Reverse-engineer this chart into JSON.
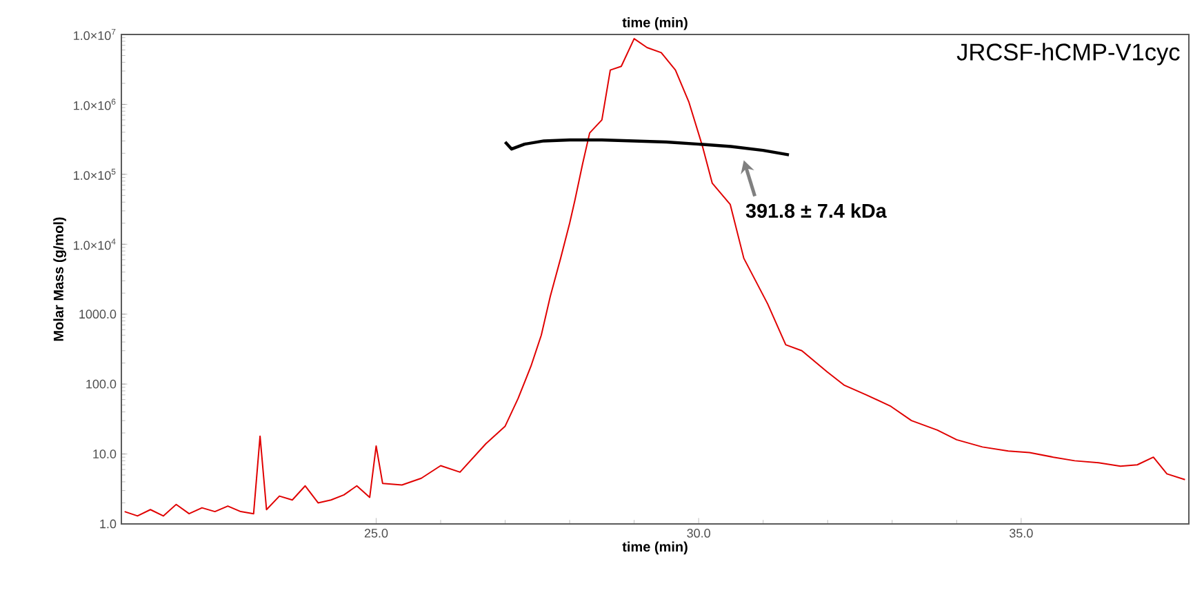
{
  "chart_data": {
    "type": "line",
    "xlabel": "time (min)",
    "x2label": "time (min)",
    "ylabel": "Molar Mass (g/mol)",
    "log": "y",
    "xlim": [
      21.05,
      37.6
    ],
    "ylim": [
      1,
      10000000
    ],
    "xticks": [
      {
        "value": 25,
        "label": "25.0"
      },
      {
        "value": 30,
        "label": "30.0"
      },
      {
        "value": 35,
        "label": "35.0"
      }
    ],
    "yticks": [
      {
        "value": 1,
        "label": "1.0"
      },
      {
        "value": 10,
        "label": "10.0"
      },
      {
        "value": 100,
        "label": "100.0"
      },
      {
        "value": 1000,
        "label": "1000.0"
      },
      {
        "value": 10000,
        "label": "1.0×10$^{4}$"
      },
      {
        "value": 100000,
        "label": "1.0×10$^{5}$"
      },
      {
        "value": 1000000,
        "label": "1.0×10$^{6}$"
      },
      {
        "value": 10000000,
        "label": "1.0×10$^{7}$"
      }
    ],
    "grid": false,
    "marker": "none",
    "line_style": "solid",
    "series": [
      {
        "color": "#e00000",
        "x": [
          21.1,
          21.3,
          21.5,
          21.7,
          21.9,
          22.1,
          22.3,
          22.5,
          22.7,
          22.9,
          23.1,
          23.2,
          23.3,
          23.5,
          23.7,
          23.9,
          24.1,
          24.3,
          24.5,
          24.7,
          24.9,
          25.0,
          25.1,
          25.4,
          25.7,
          26.0,
          26.3,
          26.7,
          27.0,
          27.2,
          27.4,
          27.56,
          27.7,
          27.86,
          28.0,
          28.08,
          28.2,
          28.31,
          28.5,
          28.63,
          28.8,
          29.0,
          29.2,
          29.42,
          29.64,
          29.85,
          30.06,
          30.21,
          30.49,
          30.7,
          30.9,
          31.07,
          31.35,
          31.6,
          31.99,
          32.26,
          32.6,
          32.98,
          33.3,
          33.7,
          34.0,
          34.4,
          34.8,
          35.13,
          35.5,
          35.83,
          36.2,
          36.54,
          36.8,
          37.05,
          37.26,
          37.54
        ],
        "values": [
          1.5,
          1.3,
          1.6,
          1.3,
          1.9,
          1.4,
          1.7,
          1.5,
          1.8,
          1.5,
          1.4,
          18,
          1.6,
          2.5,
          2.2,
          3.5,
          2.0,
          2.2,
          2.6,
          3.5,
          2.4,
          13,
          3.8,
          3.6,
          4.5,
          6.8,
          5.5,
          14,
          25,
          62,
          180,
          500,
          1800,
          6300,
          20000,
          42000,
          140000,
          390000,
          600000,
          3100000,
          3500000,
          8700000,
          6500000,
          5500000,
          3100000,
          1070000,
          250000,
          75000,
          37000,
          6300,
          2800,
          1400,
          365,
          300,
          150,
          96,
          70,
          48,
          30,
          22,
          16,
          12.6,
          11,
          10.5,
          9,
          8,
          7.5,
          6.7,
          7,
          9,
          5.2,
          4.3
        ]
      },
      {
        "color": "#000000",
        "x": [
          27.0,
          27.1,
          27.3,
          27.6,
          28.0,
          28.5,
          29.0,
          29.5,
          30.0,
          30.5,
          31.0,
          31.4
        ],
        "values": [
          290000,
          230000,
          270000,
          300000,
          310000,
          310000,
          300000,
          290000,
          270000,
          250000,
          220000,
          190000
        ]
      }
    ],
    "annotations": [
      "JRCSF-hCMP-V1cyc",
      {
        "text": "391.8 ± 7.4 kDa",
        "x": 30.7,
        "y": 250000
      }
    ]
  }
}
